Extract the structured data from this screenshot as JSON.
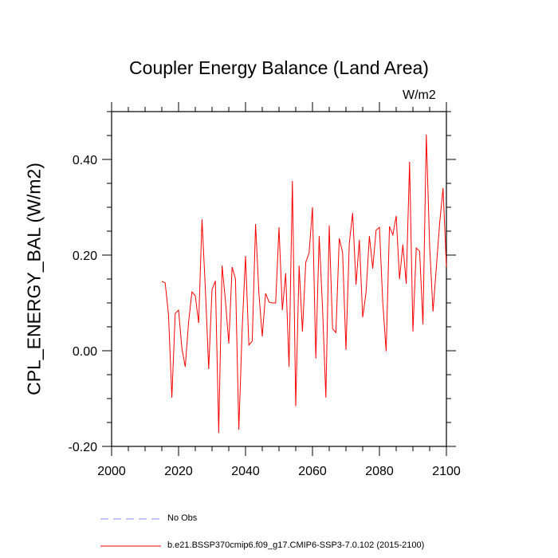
{
  "chart_data": {
    "type": "line",
    "title": "Coupler Energy Balance (Land Area)",
    "units": "W/m2",
    "ylabel": "CPL_ENERGY_BAL  (W/m2)",
    "xlabel": "",
    "xlim": [
      2000,
      2100
    ],
    "ylim": [
      -0.2,
      0.5
    ],
    "xticks": [
      "2000",
      "2020",
      "2040",
      "2060",
      "2080",
      "2100"
    ],
    "yticks": [
      "-0.20",
      "0.00",
      "0.20",
      "0.40"
    ],
    "grid": false,
    "legend_position": "bottom",
    "series": [
      {
        "name": "b.e21.BSSP370cmip6.f09_g17.CMIP6-SSP3-7.0.102 (2015-2100)",
        "color": "#ff0000",
        "style": "solid",
        "x": [
          2015,
          2016,
          2017,
          2018,
          2019,
          2020,
          2021,
          2022,
          2023,
          2024,
          2025,
          2026,
          2027,
          2028,
          2029,
          2030,
          2031,
          2032,
          2033,
          2034,
          2035,
          2036,
          2037,
          2038,
          2039,
          2040,
          2041,
          2042,
          2043,
          2044,
          2045,
          2046,
          2047,
          2048,
          2049,
          2050,
          2051,
          2052,
          2053,
          2054,
          2055,
          2056,
          2057,
          2058,
          2059,
          2060,
          2061,
          2062,
          2063,
          2064,
          2065,
          2066,
          2067,
          2068,
          2069,
          2070,
          2071,
          2072,
          2073,
          2074,
          2075,
          2076,
          2077,
          2078,
          2079,
          2080,
          2081,
          2082,
          2083,
          2084,
          2085,
          2086,
          2087,
          2088,
          2089,
          2090,
          2091,
          2092,
          2093,
          2094,
          2095,
          2096,
          2097,
          2098,
          2099,
          2100
        ],
        "values": [
          0.145,
          0.142,
          0.075,
          -0.098,
          0.078,
          0.085,
          0.005,
          -0.034,
          0.06,
          0.123,
          0.115,
          0.058,
          0.275,
          0.13,
          -0.038,
          0.128,
          0.146,
          -0.172,
          0.178,
          0.105,
          0.015,
          0.175,
          0.15,
          -0.165,
          0.045,
          0.198,
          0.012,
          0.02,
          0.265,
          0.12,
          0.03,
          0.12,
          0.102,
          0.1,
          0.1,
          0.258,
          0.085,
          0.162,
          -0.034,
          0.355,
          -0.116,
          0.178,
          0.04,
          0.185,
          0.205,
          0.3,
          -0.016,
          0.24,
          0.09,
          -0.098,
          0.262,
          0.046,
          0.038,
          0.235,
          0.205,
          0.002,
          0.225,
          0.288,
          0.138,
          0.232,
          0.07,
          0.122,
          0.24,
          0.172,
          0.252,
          0.258,
          0.1,
          -0.001,
          0.26,
          0.242,
          0.282,
          0.15,
          0.222,
          0.14,
          0.395,
          0.04,
          0.215,
          0.208,
          0.055,
          0.452,
          0.218,
          0.082,
          0.175,
          0.268,
          0.34,
          0.175
        ]
      },
      {
        "name": "No Obs",
        "color": "#8c8cff",
        "style": "dashed",
        "x": [],
        "values": []
      }
    ]
  }
}
